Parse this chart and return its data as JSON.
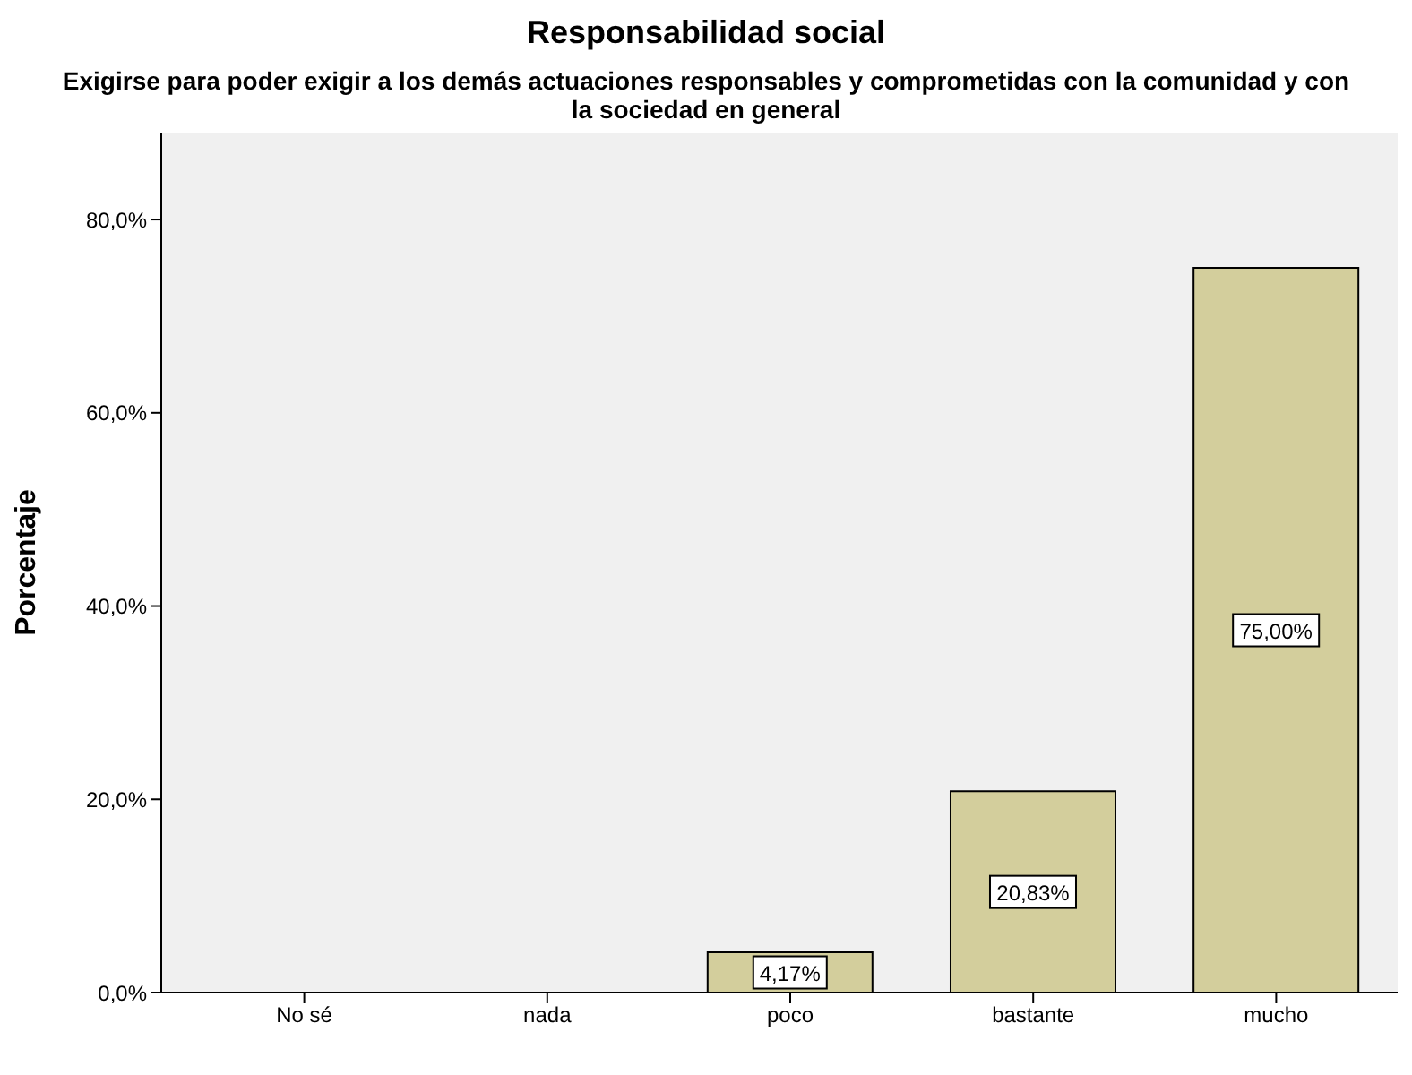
{
  "chart_data": {
    "type": "bar",
    "title": "Responsabilidad social",
    "subtitle": "Exigirse para poder exigir a los demás actuaciones responsables y comprometidas con la comunidad y con la sociedad en general",
    "ylabel": "Porcentaje",
    "categories": [
      "No sé",
      "nada",
      "poco",
      "bastante",
      "mucho"
    ],
    "values": [
      0,
      0,
      4.17,
      20.83,
      75
    ],
    "value_labels": [
      null,
      null,
      "4,17%",
      "20,83%",
      "75,00%"
    ],
    "color": "#d3ce9c",
    "ylim": [
      0,
      89
    ],
    "yticks": [
      {
        "value": 0,
        "label": "0,0%"
      },
      {
        "value": 20,
        "label": "20,0%"
      },
      {
        "value": 40,
        "label": "40,0%"
      },
      {
        "value": 60,
        "label": "60,0%"
      },
      {
        "value": 80,
        "label": "80,0%"
      }
    ],
    "grid": false,
    "legend": false
  }
}
